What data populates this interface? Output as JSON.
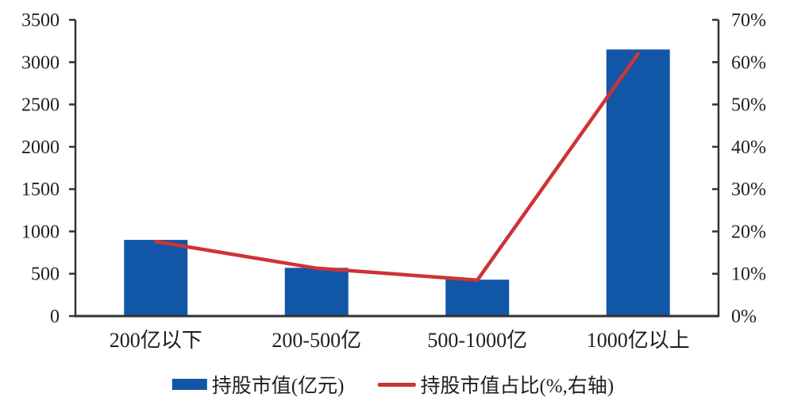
{
  "chart_data": {
    "type": "combo",
    "title": "",
    "categories": [
      "200亿以下",
      "200-500亿",
      "500-1000亿",
      "1000亿以上"
    ],
    "series": [
      {
        "name": "持股市值(亿元)",
        "type": "bar",
        "axis": "left",
        "color": "#1256a8",
        "values": [
          900,
          570,
          430,
          3150
        ]
      },
      {
        "name": "持股市值占比(%,右轴)",
        "type": "line",
        "axis": "right",
        "color": "#ce3335",
        "values": [
          17.6,
          11.3,
          8.5,
          62.0
        ]
      }
    ],
    "left_axis": {
      "min": 0,
      "max": 3500,
      "step": 500,
      "tick_labels": [
        "0",
        "500",
        "1000",
        "1500",
        "2000",
        "2500",
        "3000",
        "3500"
      ]
    },
    "right_axis": {
      "min": 0,
      "max": 70,
      "step": 10,
      "tick_labels": [
        "0%",
        "10%",
        "20%",
        "30%",
        "40%",
        "50%",
        "60%",
        "70%"
      ]
    },
    "grid": false,
    "legend_position": "bottom"
  },
  "colors": {
    "bar": "#1256a8",
    "line": "#ce3335",
    "axis": "#333333",
    "text": "#1f1f1f",
    "background": "#ffffff"
  }
}
